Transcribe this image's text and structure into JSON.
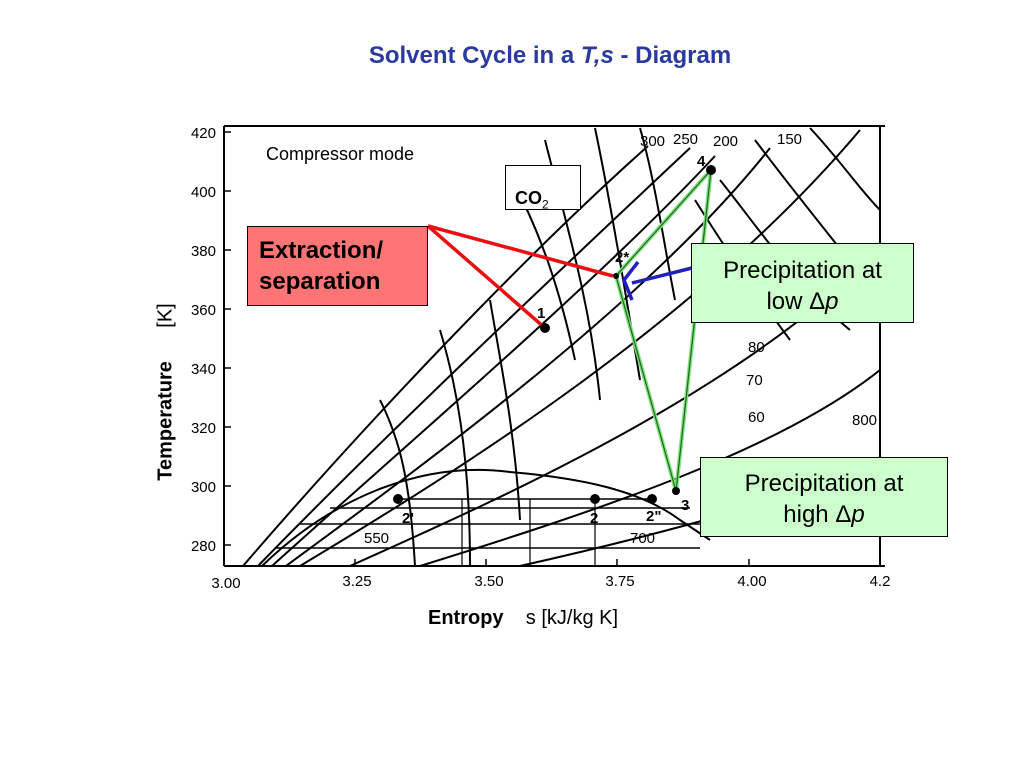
{
  "title": {
    "prefix": "Solvent Cycle in a ",
    "italic_t": "T",
    "comma": ",",
    "italic_s": "s",
    "suffix": " - Diagram"
  },
  "diagram": {
    "compressor_mode": "Compressor mode",
    "substance": {
      "text": "CO",
      "subscript": "2"
    },
    "y_axis": {
      "title": "Temperature",
      "unit": "[K]",
      "ticks": [
        "420",
        "400",
        "380",
        "360",
        "340",
        "320",
        "300",
        "280"
      ]
    },
    "x_axis": {
      "title": "Entropy",
      "unit": "s [kJ/kg K]",
      "ticks": [
        "3.00",
        "3.25",
        "3.50",
        "3.75",
        "4.00",
        "4.2"
      ]
    },
    "isobar_labels": [
      "300",
      "250",
      "200",
      "150",
      "80",
      "70",
      "60",
      "800",
      "550",
      "700"
    ],
    "state_points": [
      "1",
      "2",
      "2'",
      "2\"",
      "2*",
      "3",
      "4"
    ],
    "extraction_box": {
      "line1": "Extraction/",
      "line2": "separation"
    },
    "low_box": {
      "line1": "Precipitation at",
      "line2_prefix": "low ",
      "delta": "Δ",
      "p": "p"
    },
    "high_box": {
      "line1": "Precipitation at",
      "line2_prefix": "high ",
      "delta": "Δ",
      "p": "p"
    }
  },
  "colors": {
    "title": "#2a3a9e",
    "cycle_line": "#7ee07e",
    "extraction_line": "#e81010",
    "pointer_line": "#2020c0",
    "extraction_box": "#ff7474",
    "precip_box": "#ccffcc"
  }
}
